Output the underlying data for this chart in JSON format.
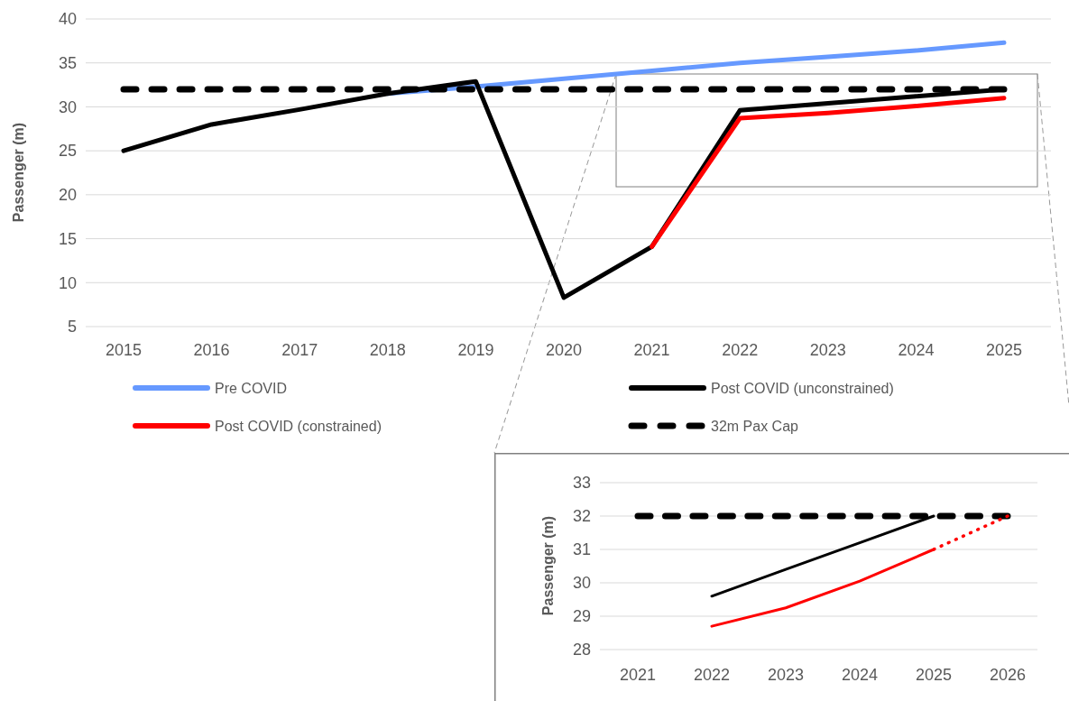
{
  "chart_data": [
    {
      "type": "line",
      "ylabel": "Passenger (m)",
      "categories": [
        "2015",
        "2016",
        "2017",
        "2018",
        "2019",
        "2020",
        "2021",
        "2022",
        "2023",
        "2024",
        "2025"
      ],
      "ylim": [
        5,
        40
      ],
      "yticks": [
        5,
        10,
        15,
        20,
        25,
        30,
        35,
        40
      ],
      "grid": "y",
      "legend": "bottom",
      "series": [
        {
          "name": "Pre COVID",
          "color": "#6699ff",
          "values": [
            null,
            null,
            null,
            31.5,
            32.3,
            33.2,
            34.1,
            35.0,
            35.7,
            36.4,
            37.3
          ]
        },
        {
          "name": "Post COVID (unconstrained)",
          "color": "#000000",
          "values": [
            25,
            28,
            29.7,
            31.5,
            32.9,
            8.3,
            14.1,
            29.6,
            30.4,
            31.2,
            32
          ]
        },
        {
          "name": "Post COVID (constrained)",
          "color": "#ff0000",
          "values": [
            null,
            null,
            null,
            null,
            null,
            null,
            14.1,
            28.7,
            29.3,
            30.1,
            31
          ]
        },
        {
          "name": "32m Pax Cap",
          "color": "#000000",
          "line_style": "dashed",
          "values": [
            32,
            32,
            32,
            32,
            32,
            32,
            32,
            32,
            32,
            32,
            32
          ]
        }
      ]
    },
    {
      "type": "line",
      "ylabel": "Passenger (m)",
      "categories": [
        "2021",
        "2022",
        "2023",
        "2024",
        "2025",
        "2026"
      ],
      "ylim": [
        28,
        33
      ],
      "yticks": [
        28,
        29,
        30,
        31,
        32,
        33
      ],
      "grid": "y",
      "series": [
        {
          "color": "#000000",
          "values": [
            null,
            29.6,
            30.4,
            31.2,
            32,
            null
          ]
        },
        {
          "color": "#ff0000",
          "values": [
            null,
            28.7,
            29.25,
            30.05,
            31,
            null
          ]
        },
        {
          "color": "#000000",
          "line_style": "dashed",
          "values": [
            32,
            32,
            32,
            32,
            32,
            32
          ]
        },
        {
          "color": "#ff0000",
          "line_style": "dotted",
          "values": [
            null,
            null,
            null,
            null,
            31,
            32
          ]
        }
      ]
    }
  ]
}
